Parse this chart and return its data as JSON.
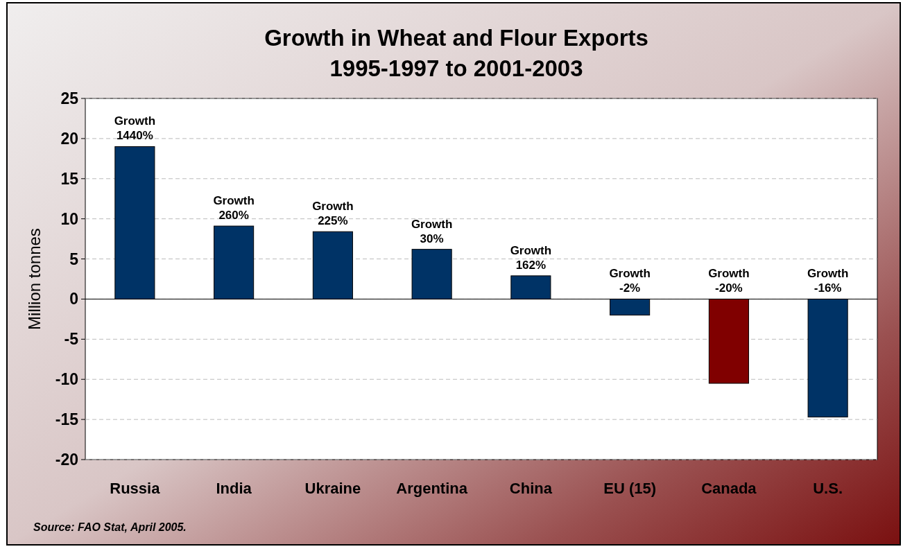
{
  "chart_data": {
    "type": "bar",
    "title": "Growth in Wheat and Flour Exports\n1995-1997 to 2001-2003",
    "ylabel": "Million tonnes",
    "categories": [
      "Russia",
      "India",
      "Ukraine",
      "Argentina",
      "China",
      "EU (15)",
      "Canada",
      "U.S."
    ],
    "values": [
      19,
      9.1,
      8.4,
      6.2,
      2.9,
      -2,
      -10.5,
      -14.7
    ],
    "colors": [
      "#003366",
      "#003366",
      "#003366",
      "#003366",
      "#003366",
      "#003366",
      "#800000",
      "#003366"
    ],
    "ylim": [
      -20,
      25
    ],
    "yticks": [
      -20,
      -15,
      -10,
      -5,
      0,
      5,
      10,
      15,
      20,
      25
    ],
    "grid": "y",
    "annotations": [
      {
        "text": "Growth\n1440%",
        "x": "Russia",
        "y": 19
      },
      {
        "text": "Growth\n260%",
        "x": "India",
        "y": 9.1
      },
      {
        "text": "Growth\n225%",
        "x": "Ukraine",
        "y": 8.4
      },
      {
        "text": "Growth\n30%",
        "x": "Argentina",
        "y": 6.2
      },
      {
        "text": "Growth\n162%",
        "x": "China",
        "y": 2.9
      },
      {
        "text": "Growth\n-2%",
        "x": "EU (15)",
        "y": 0
      },
      {
        "text": "Growth\n-20%",
        "x": "Canada",
        "y": 0
      },
      {
        "text": "Growth\n-16%",
        "x": "U.S.",
        "y": 0
      },
      "Source: FAO Stat, April 2005."
    ]
  }
}
